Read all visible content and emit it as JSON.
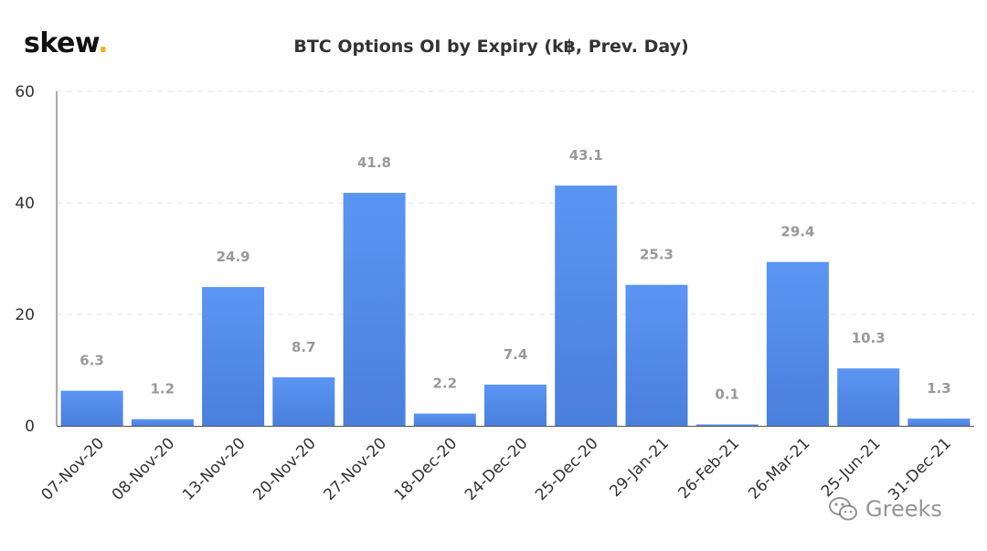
{
  "brand": {
    "logo_text": "skew",
    "logo_dot": "."
  },
  "watermark": {
    "text": "Greeks",
    "icon": "wechat-icon"
  },
  "colors": {
    "bar_top": "#5b95f3",
    "bar_bottom": "#4a7fdc",
    "logo_accent": "#f2b21b",
    "label": "#999999",
    "grid": "#e3e3e3",
    "axis": "#333333"
  },
  "chart_data": {
    "type": "bar",
    "title": "BTC Options OI by Expiry (k฿, Prev. Day)",
    "xlabel": "",
    "ylabel": "",
    "categories": [
      "07-Nov-20",
      "08-Nov-20",
      "13-Nov-20",
      "20-Nov-20",
      "27-Nov-20",
      "18-Dec-20",
      "24-Dec-20",
      "25-Dec-20",
      "29-Jan-21",
      "26-Feb-21",
      "26-Mar-21",
      "25-Jun-21",
      "31-Dec-21"
    ],
    "values": [
      6.3,
      1.2,
      24.9,
      8.7,
      41.8,
      2.2,
      7.4,
      43.1,
      25.3,
      0.1,
      29.4,
      10.3,
      1.3
    ],
    "value_labels": [
      "6.3",
      "1.2",
      "24.9",
      "8.7",
      "41.8",
      "2.2",
      "7.4",
      "43.1",
      "25.3",
      "0.1",
      "29.4",
      "10.3",
      "1.3"
    ],
    "ylim": [
      0,
      60
    ],
    "yticks": [
      0,
      20,
      40,
      60
    ],
    "grid": true,
    "legend": "none"
  }
}
